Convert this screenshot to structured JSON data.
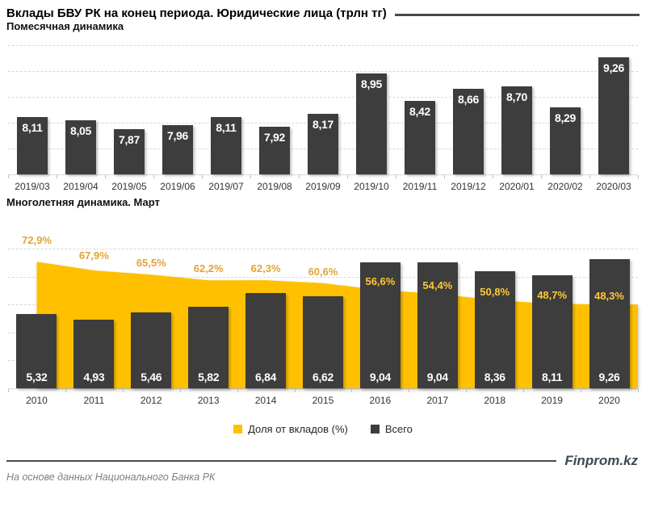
{
  "title": "Вклады БВУ РК на конец периода. Юридические лица (трлн тг)",
  "colors": {
    "accent_yellow": "#FFC000",
    "bar_dark": "#3D3D3D",
    "pct_label_on_white": "#E2A336",
    "pct_label_on_bar": "#FFC933",
    "grid": "#D9D9D9",
    "value_label": "#FFFFFF"
  },
  "chart_data": [
    {
      "type": "bar",
      "title": "Помесячная динамика",
      "xlabel": "",
      "ylabel": "",
      "ylim": [
        7,
        9.5
      ],
      "grid": true,
      "categories": [
        "2019/03",
        "2019/04",
        "2019/05",
        "2019/06",
        "2019/07",
        "2019/08",
        "2019/09",
        "2019/10",
        "2019/11",
        "2019/12",
        "2020/01",
        "2020/02",
        "2020/03"
      ],
      "values": [
        8.11,
        8.05,
        7.87,
        7.96,
        8.11,
        7.92,
        8.17,
        8.95,
        8.42,
        8.66,
        8.7,
        8.29,
        9.26
      ]
    },
    {
      "type": "bar+area",
      "title": "Многолетняя динамика.  Март",
      "grid": true,
      "legend_position": "bottom",
      "categories": [
        "2010",
        "2011",
        "2012",
        "2013",
        "2014",
        "2015",
        "2016",
        "2017",
        "2018",
        "2019",
        "2020"
      ],
      "series": [
        {
          "name": "Доля от вкладов (%)",
          "type": "area",
          "axis": "secondary-percent",
          "ylim": [
            0,
            100
          ],
          "values": [
            72.9,
            67.9,
            65.5,
            62.2,
            62.3,
            60.6,
            56.6,
            54.4,
            50.8,
            48.7,
            48.3
          ]
        },
        {
          "name": "Всего",
          "type": "bar",
          "ylim": [
            0,
            10
          ],
          "values": [
            5.32,
            4.93,
            5.46,
            5.82,
            6.84,
            6.62,
            9.04,
            9.04,
            8.36,
            8.11,
            9.26
          ]
        }
      ]
    }
  ],
  "legend": {
    "share_label": "Доля от вкладов (%)",
    "total_label": "Всего"
  },
  "footer": {
    "source": "На основе данных Национального Банка РК",
    "brand": "Finprom.kz"
  }
}
